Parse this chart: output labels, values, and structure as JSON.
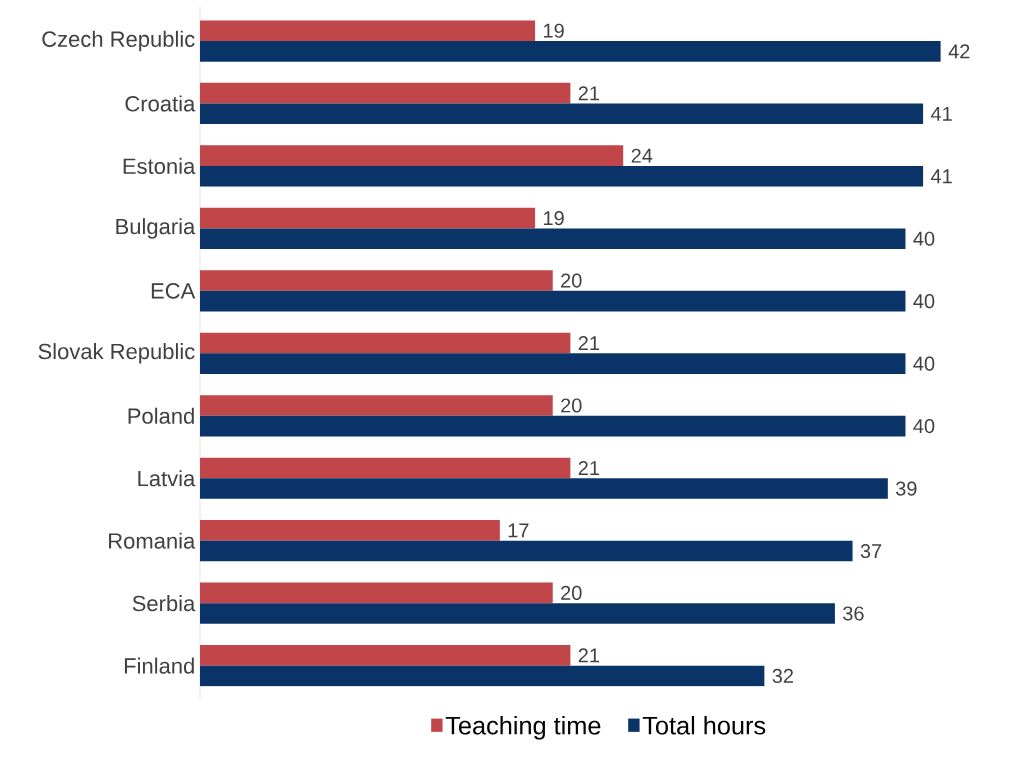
{
  "chart_data": {
    "type": "bar",
    "orientation": "horizontal",
    "categories": [
      "Czech Republic",
      "Croatia",
      "Estonia",
      "Bulgaria",
      "ECA",
      "Slovak Republic",
      "Poland",
      "Latvia",
      "Romania",
      "Serbia",
      "Finland"
    ],
    "series": [
      {
        "name": "Teaching time",
        "color": "#c0464a",
        "values": [
          19,
          21,
          24,
          19,
          20,
          21,
          20,
          21,
          17,
          20,
          21
        ]
      },
      {
        "name": "Total hours",
        "color": "#0a3468",
        "values": [
          42,
          41,
          41,
          40,
          40,
          40,
          40,
          39,
          37,
          36,
          32
        ]
      }
    ],
    "data_labels": true,
    "legend": "bottom",
    "tick_labels": "y",
    "grid": false
  }
}
